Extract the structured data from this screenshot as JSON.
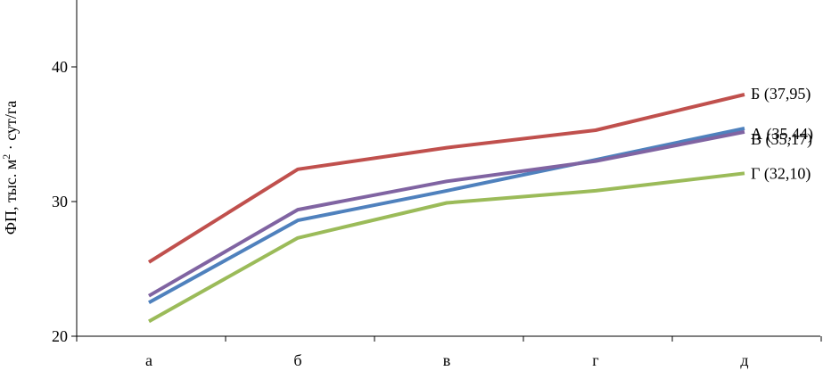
{
  "chart_data": {
    "type": "line",
    "categories": [
      "а",
      "б",
      "в",
      "г",
      "д"
    ],
    "ylabel_main": "ФП, тыс. м",
    "ylabel_sup": "2",
    "ylabel_rest": " · сут/га",
    "ylim": [
      20,
      45
    ],
    "yticks": [
      20,
      30,
      40
    ],
    "grid": false,
    "legend": "none",
    "series": [
      {
        "name": "Б (37,95)",
        "color": "#c0504d",
        "values": [
          25.5,
          32.4,
          34.0,
          35.3,
          37.95
        ]
      },
      {
        "name": "А (35,44)",
        "color": "#4f81bd",
        "values": [
          22.5,
          28.6,
          30.8,
          33.1,
          35.44
        ]
      },
      {
        "name": "В (35,17)",
        "color": "#8064a2",
        "values": [
          23.0,
          29.4,
          31.5,
          33.0,
          35.17
        ]
      },
      {
        "name": "Г (32,10)",
        "color": "#9bbb59",
        "values": [
          21.1,
          27.3,
          29.9,
          30.8,
          32.1
        ]
      }
    ]
  }
}
